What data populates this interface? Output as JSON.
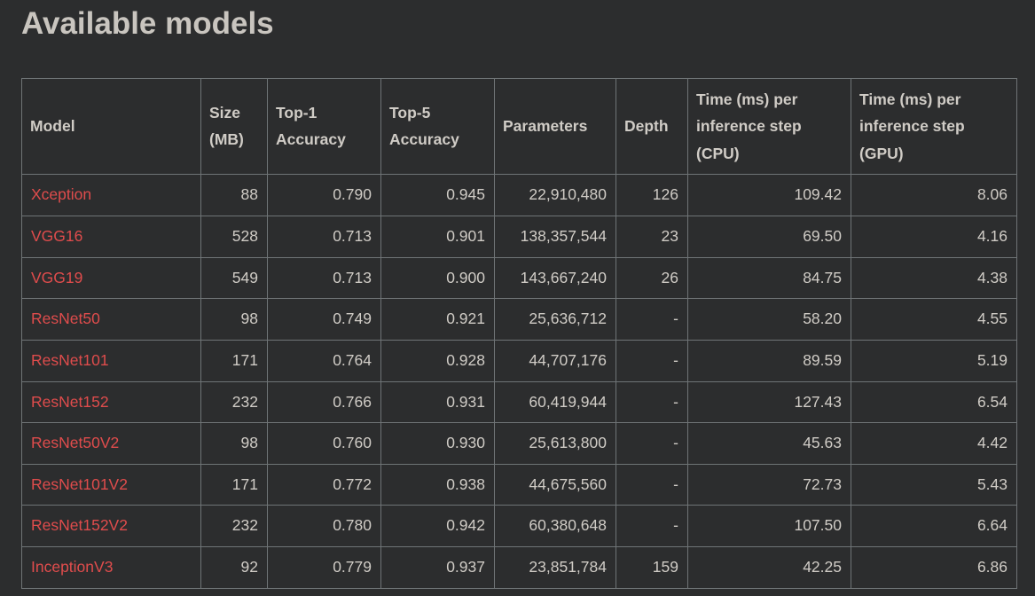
{
  "page": {
    "title": "Available models"
  },
  "colors": {
    "background": "#2c2d2e",
    "table_border": "#6f7476",
    "body_text": "#d0ccc6",
    "heading_text": "#c9c5bf",
    "model_link_red": "#df4c4c"
  },
  "table": {
    "columns": [
      "Model",
      "Size (MB)",
      "Top-1 Accuracy",
      "Top-5 Accuracy",
      "Parameters",
      "Depth",
      "Time (ms) per inference step (CPU)",
      "Time (ms) per inference step (GPU)"
    ],
    "rows": [
      {
        "cells": [
          "Xception",
          "88",
          "0.790",
          "0.945",
          "22,910,480",
          "126",
          "109.42",
          "8.06"
        ]
      },
      {
        "cells": [
          "VGG16",
          "528",
          "0.713",
          "0.901",
          "138,357,544",
          "23",
          "69.50",
          "4.16"
        ]
      },
      {
        "cells": [
          "VGG19",
          "549",
          "0.713",
          "0.900",
          "143,667,240",
          "26",
          "84.75",
          "4.38"
        ]
      },
      {
        "cells": [
          "ResNet50",
          "98",
          "0.749",
          "0.921",
          "25,636,712",
          "-",
          "58.20",
          "4.55"
        ]
      },
      {
        "cells": [
          "ResNet101",
          "171",
          "0.764",
          "0.928",
          "44,707,176",
          "-",
          "89.59",
          "5.19"
        ]
      },
      {
        "cells": [
          "ResNet152",
          "232",
          "0.766",
          "0.931",
          "60,419,944",
          "-",
          "127.43",
          "6.54"
        ]
      },
      {
        "cells": [
          "ResNet50V2",
          "98",
          "0.760",
          "0.930",
          "25,613,800",
          "-",
          "45.63",
          "4.42"
        ]
      },
      {
        "cells": [
          "ResNet101V2",
          "171",
          "0.772",
          "0.938",
          "44,675,560",
          "-",
          "72.73",
          "5.43"
        ]
      },
      {
        "cells": [
          "ResNet152V2",
          "232",
          "0.780",
          "0.942",
          "60,380,648",
          "-",
          "107.50",
          "6.64"
        ]
      },
      {
        "cells": [
          "InceptionV3",
          "92",
          "0.779",
          "0.937",
          "23,851,784",
          "159",
          "42.25",
          "6.86"
        ]
      }
    ]
  }
}
